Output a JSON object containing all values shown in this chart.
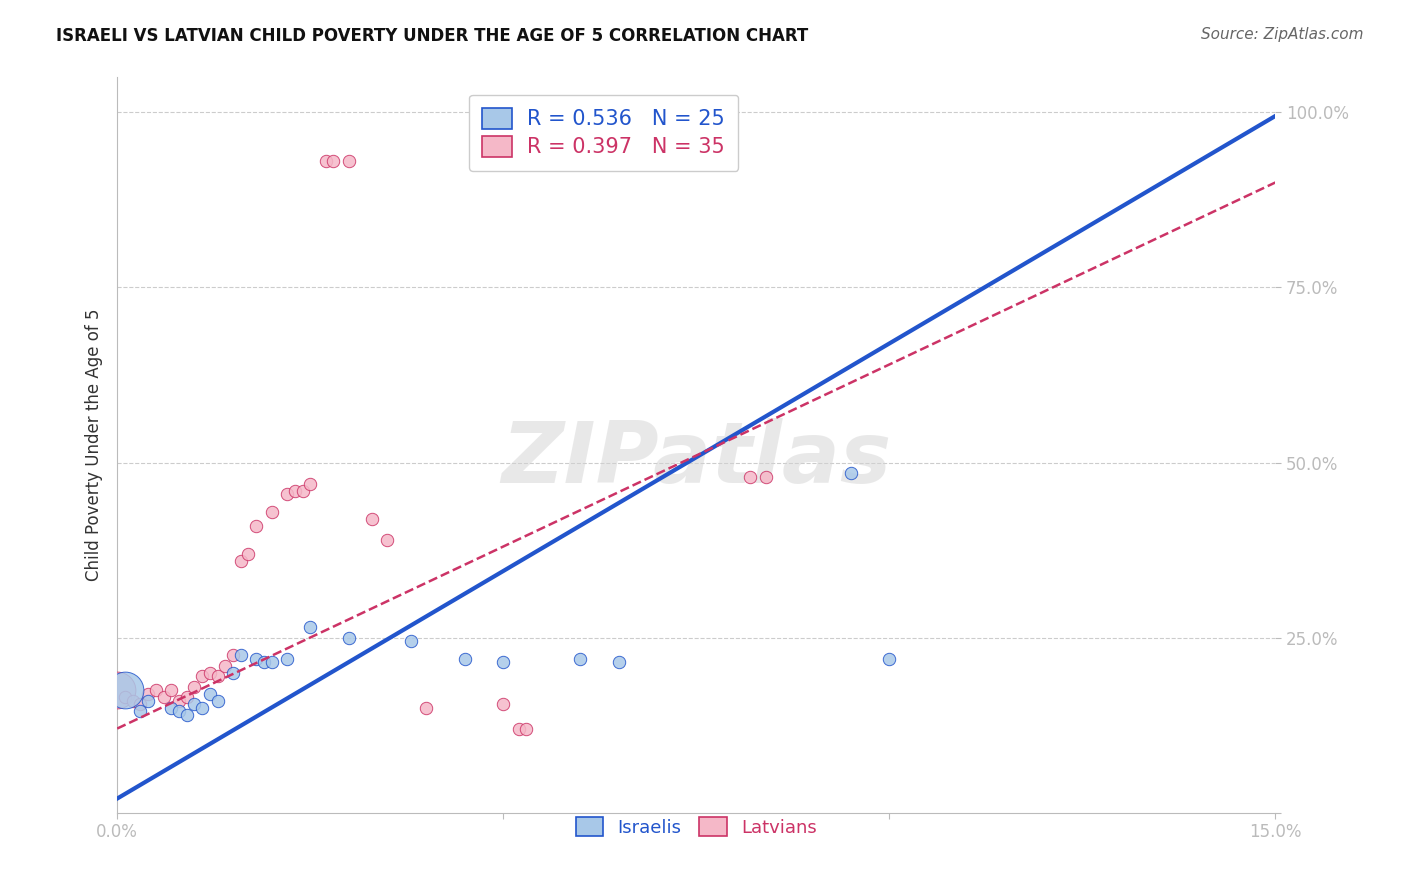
{
  "title": "ISRAELI VS LATVIAN CHILD POVERTY UNDER THE AGE OF 5 CORRELATION CHART",
  "source": "Source: ZipAtlas.com",
  "ylabel": "Child Poverty Under the Age of 5",
  "xmin": 0.0,
  "xmax": 0.15,
  "ymin": 0.0,
  "ymax": 1.05,
  "background_color": "#ffffff",
  "grid_color": "#cccccc",
  "israeli_color": "#a8c8e8",
  "latvian_color": "#f5b8c8",
  "israeli_line_color": "#2255cc",
  "latvian_line_color": "#cc3366",
  "R_israeli": 0.536,
  "N_israeli": 25,
  "R_latvian": 0.397,
  "N_latvian": 35,
  "israeli_line_slope": 6.5,
  "israeli_line_intercept": 0.02,
  "latvian_line_slope": 5.2,
  "latvian_line_intercept": 0.12,
  "israeli_points": [
    [
      0.001,
      0.175
    ],
    [
      0.003,
      0.145
    ],
    [
      0.004,
      0.16
    ],
    [
      0.007,
      0.15
    ],
    [
      0.008,
      0.145
    ],
    [
      0.009,
      0.14
    ],
    [
      0.01,
      0.155
    ],
    [
      0.011,
      0.15
    ],
    [
      0.012,
      0.17
    ],
    [
      0.013,
      0.16
    ],
    [
      0.015,
      0.2
    ],
    [
      0.016,
      0.225
    ],
    [
      0.018,
      0.22
    ],
    [
      0.019,
      0.215
    ],
    [
      0.02,
      0.215
    ],
    [
      0.022,
      0.22
    ],
    [
      0.025,
      0.265
    ],
    [
      0.03,
      0.25
    ],
    [
      0.038,
      0.245
    ],
    [
      0.045,
      0.22
    ],
    [
      0.05,
      0.215
    ],
    [
      0.06,
      0.22
    ],
    [
      0.065,
      0.215
    ],
    [
      0.095,
      0.485
    ],
    [
      0.1,
      0.22
    ]
  ],
  "israeli_large_idx": 0,
  "latvian_points": [
    [
      0.0,
      0.175
    ],
    [
      0.001,
      0.165
    ],
    [
      0.002,
      0.16
    ],
    [
      0.003,
      0.155
    ],
    [
      0.004,
      0.17
    ],
    [
      0.005,
      0.175
    ],
    [
      0.006,
      0.165
    ],
    [
      0.007,
      0.175
    ],
    [
      0.008,
      0.16
    ],
    [
      0.009,
      0.165
    ],
    [
      0.01,
      0.18
    ],
    [
      0.011,
      0.195
    ],
    [
      0.012,
      0.2
    ],
    [
      0.013,
      0.195
    ],
    [
      0.014,
      0.21
    ],
    [
      0.015,
      0.225
    ],
    [
      0.016,
      0.36
    ],
    [
      0.017,
      0.37
    ],
    [
      0.018,
      0.41
    ],
    [
      0.02,
      0.43
    ],
    [
      0.022,
      0.455
    ],
    [
      0.023,
      0.46
    ],
    [
      0.024,
      0.46
    ],
    [
      0.025,
      0.47
    ],
    [
      0.027,
      0.93
    ],
    [
      0.028,
      0.93
    ],
    [
      0.03,
      0.93
    ],
    [
      0.033,
      0.42
    ],
    [
      0.035,
      0.39
    ],
    [
      0.04,
      0.15
    ],
    [
      0.05,
      0.155
    ],
    [
      0.052,
      0.12
    ],
    [
      0.053,
      0.12
    ],
    [
      0.082,
      0.48
    ],
    [
      0.084,
      0.48
    ]
  ],
  "latvian_large_idx": 0,
  "latvian_large_size": 700
}
